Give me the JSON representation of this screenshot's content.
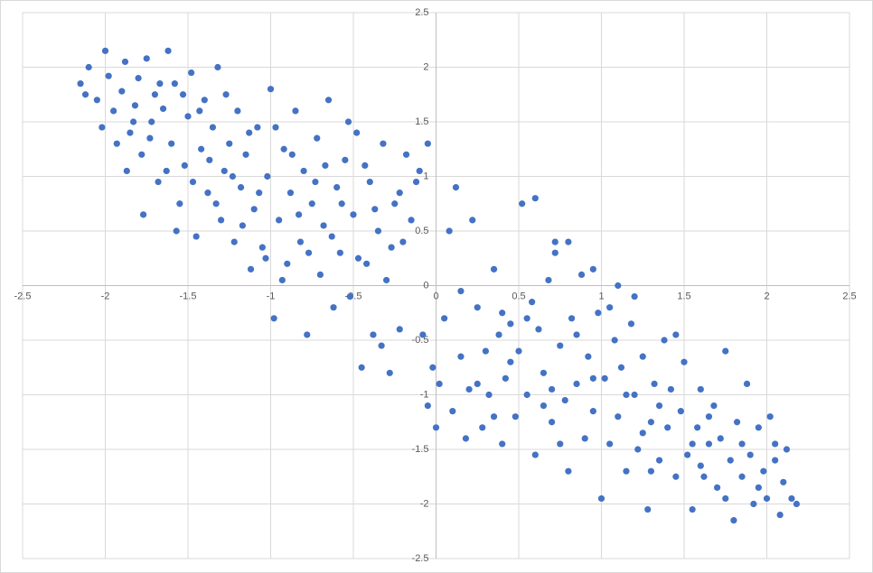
{
  "chart_data": {
    "type": "scatter",
    "color": "#4472c4",
    "grid": true,
    "xlim": [
      -2.5,
      2.5
    ],
    "ylim": [
      -2.5,
      2.5
    ],
    "xticks": [
      -2.5,
      -2,
      -1.5,
      -1,
      -0.5,
      0,
      0.5,
      1,
      1.5,
      2,
      2.5
    ],
    "yticks": [
      -2.5,
      -2,
      -1.5,
      -1,
      -0.5,
      0,
      0.5,
      1,
      1.5,
      2,
      2.5
    ],
    "x": [
      -2.15,
      -2.1,
      -2.05,
      -2.0,
      -1.98,
      -1.95,
      -1.9,
      -1.88,
      -1.85,
      -1.82,
      -1.8,
      -1.78,
      -1.75,
      -1.72,
      -1.7,
      -1.68,
      -1.65,
      -1.62,
      -1.6,
      -1.58,
      -1.55,
      -1.52,
      -1.5,
      -1.48,
      -1.45,
      -1.42,
      -1.4,
      -1.38,
      -1.35,
      -1.32,
      -1.3,
      -1.28,
      -1.25,
      -1.22,
      -1.2,
      -1.18,
      -1.15,
      -1.12,
      -1.1,
      -1.08,
      -1.05,
      -1.02,
      -1.0,
      -0.98,
      -0.95,
      -0.92,
      -0.9,
      -0.88,
      -0.85,
      -0.82,
      -0.8,
      -0.78,
      -0.75,
      -0.72,
      -0.7,
      -0.68,
      -0.65,
      -0.62,
      -0.6,
      -0.58,
      -0.55,
      -0.52,
      -0.5,
      -0.48,
      -0.45,
      -0.42,
      -0.4,
      -0.38,
      -0.35,
      -0.32,
      -0.3,
      -0.28,
      -0.25,
      -0.22,
      -0.2,
      -0.18,
      -0.15,
      -0.12,
      -0.1,
      -0.05,
      -2.12,
      -2.02,
      -1.93,
      -1.87,
      -1.83,
      -1.77,
      -1.73,
      -1.67,
      -1.63,
      -1.57,
      -1.53,
      -1.47,
      -1.43,
      -1.37,
      -1.33,
      -1.27,
      -1.23,
      -1.17,
      -1.13,
      -1.07,
      -1.03,
      -0.97,
      -0.93,
      -0.87,
      -0.83,
      -0.77,
      -0.73,
      -0.67,
      -0.63,
      -0.57,
      -0.53,
      -0.47,
      -0.43,
      -0.37,
      -0.33,
      -0.27,
      -0.22,
      -0.08,
      -0.05,
      -0.02,
      0.0,
      0.02,
      0.05,
      0.08,
      0.1,
      0.12,
      0.15,
      0.18,
      0.2,
      0.22,
      0.25,
      0.28,
      0.3,
      0.32,
      0.35,
      0.38,
      0.4,
      0.42,
      0.45,
      0.48,
      0.5,
      0.52,
      0.55,
      0.58,
      0.6,
      0.62,
      0.65,
      0.68,
      0.7,
      0.72,
      0.75,
      0.78,
      0.8,
      0.82,
      0.85,
      0.88,
      0.9,
      0.92,
      0.95,
      0.98,
      1.0,
      1.02,
      1.05,
      1.08,
      1.1,
      1.12,
      1.15,
      1.18,
      1.2,
      1.22,
      1.25,
      1.28,
      1.3,
      1.32,
      1.35,
      1.38,
      1.4,
      1.42,
      1.45,
      1.48,
      1.5,
      1.52,
      1.55,
      1.58,
      1.6,
      1.62,
      1.65,
      1.68,
      1.7,
      1.72,
      1.75,
      1.78,
      1.8,
      1.82,
      1.85,
      1.88,
      1.9,
      1.92,
      1.95,
      1.98,
      2.0,
      2.02,
      2.05,
      2.08,
      2.1,
      2.12,
      2.15,
      2.18,
      0.15,
      0.25,
      0.35,
      0.45,
      0.55,
      0.65,
      0.75,
      0.85,
      0.95,
      1.05,
      1.15,
      1.25,
      1.35,
      1.45,
      1.55,
      1.65,
      1.75,
      1.85,
      1.95,
      2.05,
      0.6,
      0.72,
      0.8,
      0.95,
      1.1,
      1.2,
      0.4,
      0.7,
      1.3,
      1.6
    ],
    "values": [
      1.85,
      2.0,
      1.7,
      2.15,
      1.92,
      1.6,
      1.78,
      2.05,
      1.4,
      1.65,
      1.9,
      1.2,
      2.08,
      1.5,
      1.75,
      0.95,
      1.62,
      2.15,
      1.3,
      1.85,
      0.75,
      1.1,
      1.55,
      1.95,
      0.45,
      1.25,
      1.7,
      0.85,
      1.45,
      2.0,
      0.6,
      1.05,
      1.3,
      0.4,
      1.6,
      0.9,
      1.2,
      0.15,
      0.7,
      1.45,
      0.35,
      1.0,
      1.8,
      -0.3,
      0.6,
      1.25,
      0.2,
      0.85,
      1.6,
      0.4,
      1.05,
      -0.45,
      0.75,
      1.35,
      0.1,
      0.55,
      1.7,
      -0.2,
      0.9,
      0.3,
      1.15,
      -0.1,
      0.65,
      1.4,
      -0.75,
      0.2,
      0.95,
      -0.45,
      0.5,
      1.3,
      0.05,
      -0.8,
      0.75,
      -0.4,
      0.4,
      1.2,
      0.6,
      0.95,
      1.05,
      1.3,
      1.75,
      1.45,
      1.3,
      1.05,
      1.5,
      0.65,
      1.35,
      1.85,
      1.05,
      0.5,
      1.75,
      0.95,
      1.6,
      1.15,
      0.75,
      1.75,
      1.0,
      0.55,
      1.4,
      0.85,
      0.25,
      1.45,
      0.05,
      1.2,
      0.65,
      0.3,
      0.95,
      1.1,
      0.45,
      0.75,
      1.5,
      0.25,
      1.1,
      0.7,
      -0.55,
      0.35,
      0.85,
      -0.45,
      -1.1,
      -0.75,
      -1.3,
      -0.9,
      -0.3,
      0.5,
      -1.15,
      0.9,
      -0.65,
      -1.4,
      -0.95,
      0.6,
      -0.2,
      -1.3,
      -0.6,
      -1.0,
      0.15,
      -0.45,
      -1.45,
      -0.85,
      -0.35,
      -1.2,
      -0.6,
      0.75,
      -1.0,
      -0.15,
      -1.55,
      -0.4,
      -0.8,
      0.05,
      -1.25,
      0.4,
      -0.55,
      -1.05,
      -1.7,
      -0.3,
      -0.9,
      0.1,
      -1.4,
      -0.65,
      -1.15,
      -0.25,
      -1.95,
      -0.85,
      -1.45,
      -0.5,
      -1.2,
      -0.75,
      -1.7,
      -0.35,
      -1.0,
      -1.5,
      -0.65,
      -2.05,
      -1.25,
      -0.9,
      -1.6,
      -0.5,
      -1.3,
      -0.95,
      -1.75,
      -1.15,
      -0.7,
      -1.55,
      -2.05,
      -1.3,
      -0.95,
      -1.75,
      -1.45,
      -1.1,
      -1.85,
      -1.4,
      -0.6,
      -1.6,
      -2.15,
      -1.25,
      -1.75,
      -0.9,
      -1.55,
      -2.0,
      -1.3,
      -1.7,
      -1.95,
      -1.2,
      -1.6,
      -2.1,
      -1.8,
      -1.5,
      -1.95,
      -2.0,
      -0.05,
      -0.9,
      -1.2,
      -0.7,
      -0.3,
      -1.1,
      -1.45,
      -0.45,
      -0.85,
      -0.2,
      -1.0,
      -1.35,
      -1.1,
      -0.45,
      -1.45,
      -1.2,
      -1.95,
      -1.45,
      -1.85,
      -1.45,
      0.8,
      0.3,
      0.4,
      0.15,
      0.0,
      -0.1,
      -0.25,
      -0.95,
      -1.7,
      -1.65
    ]
  }
}
